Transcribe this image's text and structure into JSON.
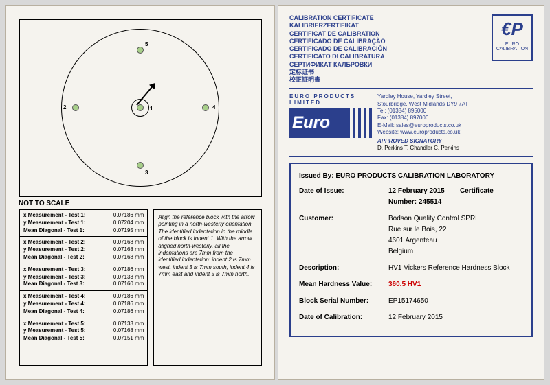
{
  "left": {
    "not_to_scale": "NOT TO SCALE",
    "tests": [
      {
        "x": "x Measurement - Test 1:",
        "xv": "0.07186 mm",
        "y": "y Measurement - Test 1:",
        "yv": "0.07204 mm",
        "m": "Mean Diagonal - Test 1:",
        "mv": "0.07195 mm"
      },
      {
        "x": "x Measurement - Test 2:",
        "xv": "0.07168 mm",
        "y": "y Measurement - Test 2:",
        "yv": "0.07168 mm",
        "m": "Mean Diagonal - Test 2:",
        "mv": "0.07168 mm"
      },
      {
        "x": "x Measurement - Test 3:",
        "xv": "0.07186 mm",
        "y": "y Measurement - Test 3:",
        "yv": "0.07133 mm",
        "m": "Mean Diagonal - Test 3:",
        "mv": "0.07160 mm"
      },
      {
        "x": "x Measurement - Test 4:",
        "xv": "0.07186 mm",
        "y": "y Measurement - Test 4:",
        "yv": "0.07186 mm",
        "m": "Mean Diagonal - Test 4:",
        "mv": "0.07186 mm"
      },
      {
        "x": "x Measurement - Test 5:",
        "xv": "0.07133 mm",
        "y": "y Measurement - Test 5:",
        "yv": "0.07168 mm",
        "m": "Mean Diagonal - Test 5:",
        "mv": "0.07151 mm"
      }
    ],
    "instructions": "Align the reference block with the arrow pointing in a north-westerly orientation. The identified indentation in the middle of the block is Indent 1. With the arrow aligned north-westerly, all the indentations are 7mm from the identified indentation: indent 2 is 7mm west, indent 3 is 7mm south, indent 4 is 7mm east and indent 5 is 7mm north.",
    "dot_labels": {
      "d1": "1",
      "d2": "2",
      "d3": "3",
      "d4": "4",
      "d5": "5"
    }
  },
  "right": {
    "titles": [
      "CALIBRATION CERTIFICATE",
      "KALIBRIERZERTIFIKAT",
      "CERTIFICAT DE CALIBRATION",
      "CERTIFICADO DE CALIBRAÇÃO",
      "CERTIFICADO DE CALIBRACIÓN",
      "CERTIFICATO DI CALIBRATURA",
      "СЕРТИФИКАТ КАЛБРОВКИ",
      "定标证书",
      "校正証明書"
    ],
    "logo": {
      "ep": "€P",
      "ec": "EURO CALIBRATION"
    },
    "epl": "EURO PRODUCTS LIMITED",
    "euro_text": "Euro",
    "address": {
      "l1": "Yardley House, Yardley Street,",
      "l2": "Stourbridge, West Midlands DY9 7AT",
      "l3": "Tel:   (01384) 895000",
      "l4": "Fax:  (01384) 897000",
      "l5": "E-Mail: sales@europroducts.co.uk",
      "l6": "Website: www.europroducts.co.uk",
      "sig_label": "APPROVED SIGNATORY",
      "sigs": "D. Perkins      T. Chandler      C. Perkins"
    },
    "issued": "Issued By: EURO PRODUCTS CALIBRATION LABORATORY",
    "date_issue_k": "Date of Issue:",
    "date_issue_v": "12 February 2015",
    "cert_k": "Certificate Number:",
    "cert_v": "245514",
    "customer_k": "Customer:",
    "customer_v1": "Bodson Quality Control SPRL",
    "customer_v2": "Rue sur le Bois, 22",
    "customer_v3": "4601 Argenteau",
    "customer_v4": "Belgium",
    "desc_k": "Description:",
    "desc_v": "HV1  Vickers Reference Hardness Block",
    "mh_k": "Mean Hardness Value:",
    "mh_v": "360.5 HV1",
    "bsn_k": "Block Serial Number:",
    "bsn_v": "EP15174650",
    "doc_k": "Date of Calibration:",
    "doc_v": "12 February 2015"
  }
}
